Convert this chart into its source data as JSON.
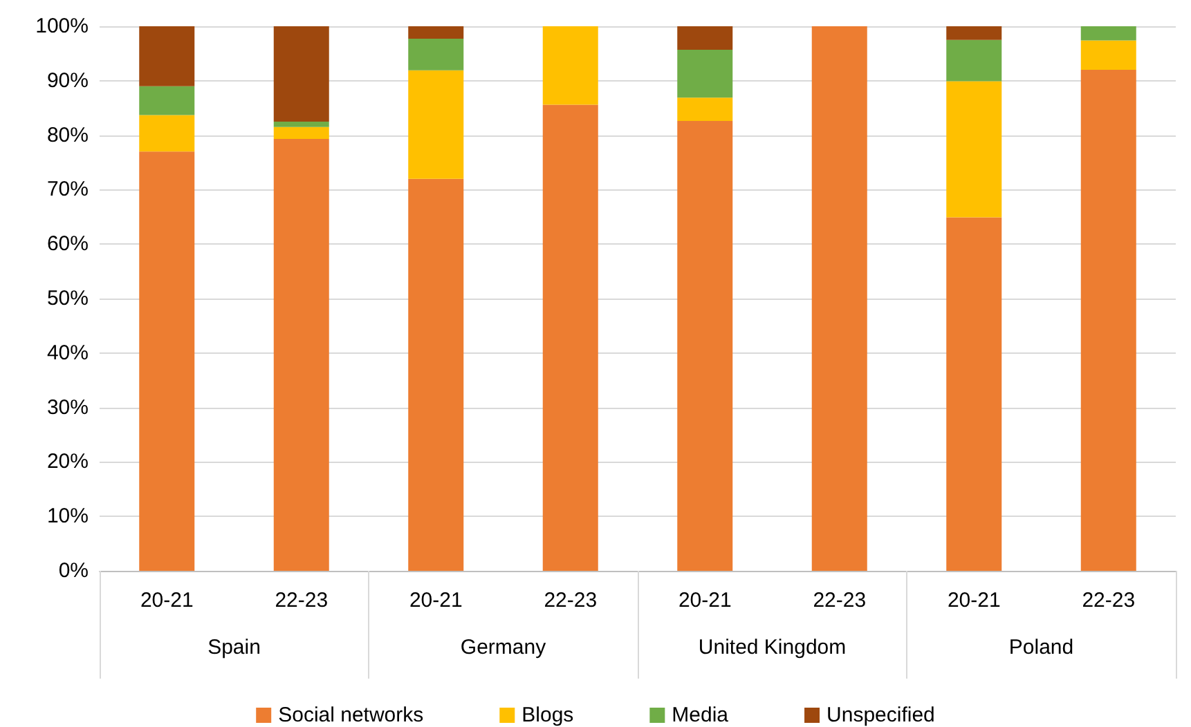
{
  "chart_data": {
    "type": "bar",
    "stacked": true,
    "categories": [
      "20-21",
      "22-23",
      "20-21",
      "22-23",
      "20-21",
      "22-23",
      "20-21",
      "22-23"
    ],
    "annotations": [
      "Spain",
      "Germany",
      "United Kingdom",
      "Poland"
    ],
    "series": [
      {
        "name": "Social networks",
        "color": "#ed7d31",
        "values": [
          77,
          79.3,
          72,
          85.6,
          82.6,
          100,
          64.9,
          92
        ]
      },
      {
        "name": "Blogs",
        "color": "#ffc000",
        "values": [
          6.7,
          2.2,
          19.9,
          14.4,
          4.3,
          0,
          25,
          5.4
        ]
      },
      {
        "name": "Media",
        "color": "#70ad47",
        "values": [
          5.3,
          1,
          5.8,
          0,
          8.8,
          0,
          7.6,
          2.6
        ]
      },
      {
        "name": "Unspecified",
        "color": "#9e480e",
        "values": [
          11,
          17.5,
          2.3,
          0,
          4.3,
          0,
          2.5,
          0
        ]
      }
    ],
    "ylim": [
      0,
      100
    ],
    "yticks": [
      {
        "value": 0,
        "label": "0%"
      },
      {
        "value": 10,
        "label": "10%"
      },
      {
        "value": 20,
        "label": "20%"
      },
      {
        "value": 30,
        "label": "30%"
      },
      {
        "value": 40,
        "label": "40%"
      },
      {
        "value": 50,
        "label": "50%"
      },
      {
        "value": 60,
        "label": "60%"
      },
      {
        "value": 70,
        "label": "70%"
      },
      {
        "value": 80,
        "label": "80%"
      },
      {
        "value": 90,
        "label": "90%"
      },
      {
        "value": 100,
        "label": "100%"
      }
    ],
    "grid": "y",
    "legend": "bottom"
  }
}
